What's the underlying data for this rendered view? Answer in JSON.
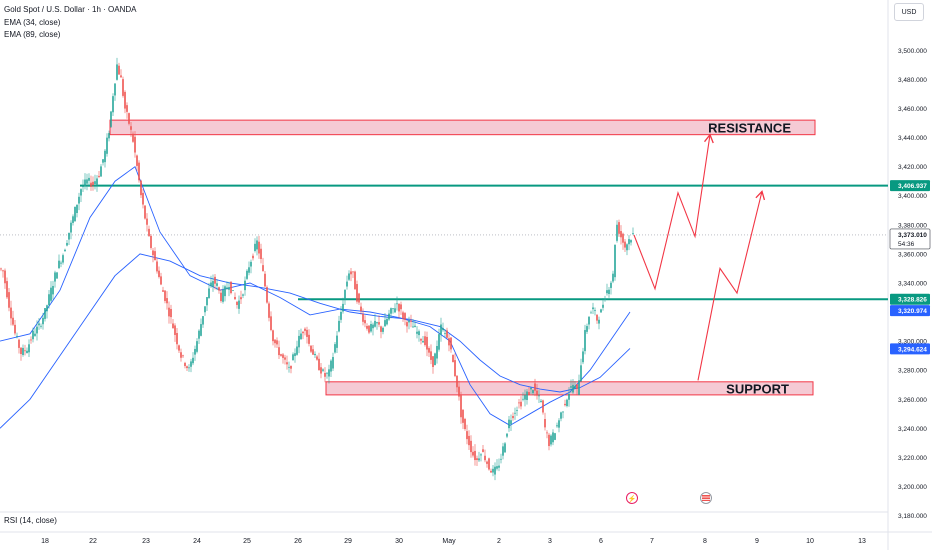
{
  "header": {
    "symbol_title": "Gold Spot / U.S. Dollar · 1h · OANDA",
    "ema1": "EMA (34, close)",
    "ema2": "EMA (89, close)",
    "currency": "USD"
  },
  "footer": {
    "rsi_label": "RSI (14, close)"
  },
  "colors": {
    "up": "#26a69a",
    "down": "#ef5350",
    "ema": "#2962ff",
    "level": "#089981",
    "zone_fill": "#f2b8c6",
    "zone_border": "#f23645",
    "arrow": "#f23645",
    "price_tag": "#089981",
    "ema_tag": "#2962ff",
    "current_tag": "#131722"
  },
  "chart_data": {
    "type": "candlestick",
    "title": "Gold Spot / U.S. Dollar · 1h · OANDA",
    "x_ticks": [
      "18",
      "22",
      "23",
      "24",
      "25",
      "26",
      "29",
      "30",
      "May",
      "2",
      "3",
      "6",
      "7",
      "8",
      "9",
      "10",
      "13"
    ],
    "y_ticks": [
      "3,500.000",
      "3,480.000",
      "3,460.000",
      "3,440.000",
      "3,420.000",
      "3,400.000",
      "3,380.000",
      "3,360.000",
      "3,340.000",
      "3,320.000",
      "3,300.000",
      "3,280.000",
      "3,260.000",
      "3,240.000",
      "3,220.000",
      "3,200.000",
      "3,180.000"
    ],
    "y_tick_values": [
      3500,
      3480,
      3460,
      3440,
      3420,
      3400,
      3380,
      3360,
      3340,
      3320,
      3300,
      3280,
      3260,
      3240,
      3220,
      3200,
      3180
    ],
    "ylim": [
      3168,
      3514
    ],
    "price_path": [
      [
        0,
        3350
      ],
      [
        4,
        3348
      ],
      [
        10,
        3325
      ],
      [
        16,
        3305
      ],
      [
        22,
        3292
      ],
      [
        28,
        3295
      ],
      [
        34,
        3305
      ],
      [
        40,
        3310
      ],
      [
        46,
        3320
      ],
      [
        52,
        3335
      ],
      [
        58,
        3350
      ],
      [
        64,
        3360
      ],
      [
        70,
        3375
      ],
      [
        76,
        3390
      ],
      [
        82,
        3405
      ],
      [
        88,
        3410
      ],
      [
        94,
        3408
      ],
      [
        100,
        3415
      ],
      [
        106,
        3430
      ],
      [
        110,
        3445
      ],
      [
        114,
        3470
      ],
      [
        118,
        3490
      ],
      [
        122,
        3480
      ],
      [
        126,
        3460
      ],
      [
        130,
        3450
      ],
      [
        134,
        3438
      ],
      [
        138,
        3420
      ],
      [
        142,
        3400
      ],
      [
        146,
        3385
      ],
      [
        150,
        3370
      ],
      [
        154,
        3360
      ],
      [
        158,
        3350
      ],
      [
        162,
        3338
      ],
      [
        166,
        3330
      ],
      [
        170,
        3320
      ],
      [
        174,
        3310
      ],
      [
        178,
        3300
      ],
      [
        182,
        3290
      ],
      [
        186,
        3285
      ],
      [
        190,
        3280
      ],
      [
        194,
        3290
      ],
      [
        198,
        3300
      ],
      [
        202,
        3312
      ],
      [
        206,
        3325
      ],
      [
        210,
        3335
      ],
      [
        214,
        3342
      ],
      [
        218,
        3338
      ],
      [
        222,
        3330
      ],
      [
        226,
        3335
      ],
      [
        230,
        3340
      ],
      [
        234,
        3332
      ],
      [
        238,
        3325
      ],
      [
        242,
        3330
      ],
      [
        246,
        3340
      ],
      [
        250,
        3352
      ],
      [
        254,
        3360
      ],
      [
        258,
        3368
      ],
      [
        262,
        3355
      ],
      [
        266,
        3338
      ],
      [
        270,
        3318
      ],
      [
        274,
        3302
      ],
      [
        278,
        3295
      ],
      [
        282,
        3290
      ],
      [
        286,
        3285
      ],
      [
        290,
        3280
      ],
      [
        294,
        3288
      ],
      [
        298,
        3298
      ],
      [
        302,
        3305
      ],
      [
        306,
        3310
      ],
      [
        310,
        3298
      ],
      [
        314,
        3292
      ],
      [
        318,
        3285
      ],
      [
        322,
        3280
      ],
      [
        326,
        3276
      ],
      [
        330,
        3278
      ],
      [
        334,
        3290
      ],
      [
        338,
        3305
      ],
      [
        342,
        3320
      ],
      [
        346,
        3335
      ],
      [
        350,
        3348
      ],
      [
        354,
        3345
      ],
      [
        358,
        3330
      ],
      [
        362,
        3320
      ],
      [
        366,
        3312
      ],
      [
        370,
        3308
      ],
      [
        374,
        3310
      ],
      [
        378,
        3312
      ],
      [
        382,
        3308
      ],
      [
        386,
        3312
      ],
      [
        390,
        3318
      ],
      [
        394,
        3322
      ],
      [
        398,
        3326
      ],
      [
        402,
        3320
      ],
      [
        406,
        3314
      ],
      [
        410,
        3312
      ],
      [
        414,
        3310
      ],
      [
        418,
        3306
      ],
      [
        422,
        3302
      ],
      [
        426,
        3300
      ],
      [
        430,
        3290
      ],
      [
        434,
        3285
      ],
      [
        438,
        3295
      ],
      [
        442,
        3310
      ],
      [
        446,
        3305
      ],
      [
        450,
        3300
      ],
      [
        454,
        3285
      ],
      [
        458,
        3270
      ],
      [
        462,
        3250
      ],
      [
        466,
        3238
      ],
      [
        470,
        3230
      ],
      [
        474,
        3222
      ],
      [
        478,
        3218
      ],
      [
        482,
        3225
      ],
      [
        486,
        3220
      ],
      [
        490,
        3213
      ],
      [
        494,
        3210
      ],
      [
        498,
        3212
      ],
      [
        502,
        3220
      ],
      [
        506,
        3232
      ],
      [
        510,
        3245
      ],
      [
        514,
        3250
      ],
      [
        518,
        3255
      ],
      [
        522,
        3258
      ],
      [
        526,
        3262
      ],
      [
        530,
        3265
      ],
      [
        534,
        3268
      ],
      [
        538,
        3262
      ],
      [
        542,
        3258
      ],
      [
        546,
        3240
      ],
      [
        550,
        3230
      ],
      [
        554,
        3235
      ],
      [
        558,
        3242
      ],
      [
        562,
        3250
      ],
      [
        566,
        3258
      ],
      [
        570,
        3265
      ],
      [
        574,
        3270
      ],
      [
        578,
        3265
      ],
      [
        582,
        3285
      ],
      [
        586,
        3305
      ],
      [
        590,
        3318
      ],
      [
        594,
        3322
      ],
      [
        598,
        3315
      ],
      [
        602,
        3320
      ],
      [
        606,
        3332
      ],
      [
        610,
        3338
      ],
      [
        614,
        3345
      ],
      [
        616,
        3368
      ],
      [
        618,
        3380
      ],
      [
        622,
        3372
      ],
      [
        626,
        3365
      ],
      [
        630,
        3370
      ],
      [
        634,
        3373
      ]
    ],
    "ema_34": [
      [
        0,
        3300
      ],
      [
        30,
        3305
      ],
      [
        60,
        3335
      ],
      [
        90,
        3385
      ],
      [
        115,
        3410
      ],
      [
        135,
        3420
      ],
      [
        160,
        3375
      ],
      [
        190,
        3345
      ],
      [
        220,
        3335
      ],
      [
        250,
        3340
      ],
      [
        280,
        3330
      ],
      [
        310,
        3318
      ],
      [
        340,
        3322
      ],
      [
        370,
        3320
      ],
      [
        400,
        3316
      ],
      [
        430,
        3310
      ],
      [
        450,
        3300
      ],
      [
        470,
        3270
      ],
      [
        490,
        3250
      ],
      [
        510,
        3242
      ],
      [
        530,
        3250
      ],
      [
        550,
        3258
      ],
      [
        570,
        3265
      ],
      [
        590,
        3280
      ],
      [
        610,
        3300
      ],
      [
        630,
        3320
      ]
    ],
    "ema_89": [
      [
        0,
        3240
      ],
      [
        30,
        3260
      ],
      [
        60,
        3290
      ],
      [
        90,
        3320
      ],
      [
        115,
        3345
      ],
      [
        140,
        3360
      ],
      [
        170,
        3355
      ],
      [
        200,
        3345
      ],
      [
        230,
        3340
      ],
      [
        260,
        3337
      ],
      [
        290,
        3333
      ],
      [
        320,
        3326
      ],
      [
        350,
        3320
      ],
      [
        380,
        3317
      ],
      [
        410,
        3315
      ],
      [
        440,
        3310
      ],
      [
        460,
        3300
      ],
      [
        480,
        3287
      ],
      [
        500,
        3276
      ],
      [
        520,
        3270
      ],
      [
        540,
        3267
      ],
      [
        560,
        3265
      ],
      [
        580,
        3268
      ],
      [
        600,
        3275
      ],
      [
        615,
        3285
      ],
      [
        630,
        3295
      ]
    ],
    "levels": [
      3406.937,
      3328.826
    ],
    "resistance_zone": {
      "label": "RESISTANCE",
      "top": 3452,
      "bottom": 3442,
      "x_start": 110,
      "x_end": 815
    },
    "support_zone": {
      "label": "SUPPORT",
      "top": 3272,
      "bottom": 3263,
      "x_start": 326,
      "x_end": 813
    },
    "price_tags": [
      {
        "text": "3,406.937",
        "value": 3406.937,
        "kind": "level"
      },
      {
        "text": "3,373.010",
        "text2": "54:36",
        "value": 3373.01,
        "kind": "current"
      },
      {
        "text": "3,328.826",
        "value": 3328.826,
        "kind": "level"
      },
      {
        "text": "3,320.974",
        "value": 3320.974,
        "kind": "ema"
      },
      {
        "text": "3,294.624",
        "value": 3294.624,
        "kind": "ema"
      }
    ],
    "projection_1": [
      [
        634,
        3373
      ],
      [
        655,
        3336
      ],
      [
        678,
        3402
      ],
      [
        695,
        3372
      ],
      [
        710,
        3442
      ]
    ],
    "projection_2": [
      [
        698,
        3273
      ],
      [
        720,
        3350
      ],
      [
        737,
        3333
      ],
      [
        762,
        3403
      ]
    ]
  }
}
